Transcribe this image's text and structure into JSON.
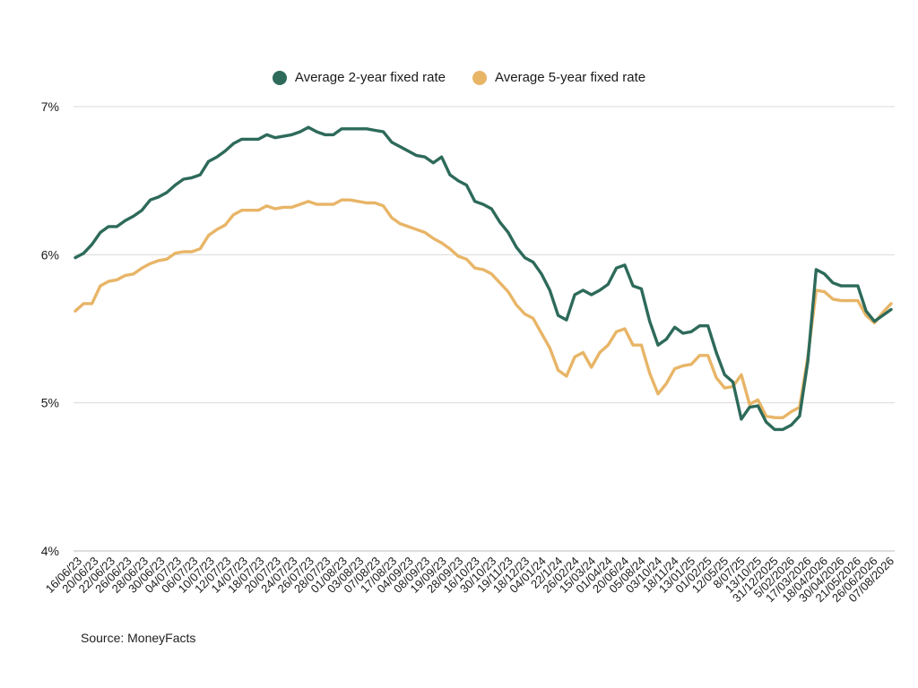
{
  "source_text": "Source: MoneyFacts",
  "colors": {
    "series_2yr": "#2d6a5a",
    "series_5yr": "#e8b567",
    "grid": "#d9d9d9"
  },
  "chart_data": {
    "type": "line",
    "legend_position": "top-center",
    "grid": true,
    "ylim": [
      4,
      7
    ],
    "y_ticks": [
      4,
      5,
      6,
      7
    ],
    "y_tick_labels": [
      "4%",
      "5%",
      "6%",
      "7%"
    ],
    "x_tick_labels": [
      "16/06/23",
      "20/06/23",
      "22/06/23",
      "26/06/23",
      "28/06/23",
      "30/06/23",
      "04/07/23",
      "06/07/23",
      "10/07/23",
      "12/07/23",
      "14/07/23",
      "18/07/23",
      "20/07/23",
      "24/07/23",
      "26/07/23",
      "28/07/23",
      "01/08/23",
      "03/08/23",
      "07/08/23",
      "17/08/23",
      "04/09/23",
      "08/09/23",
      "19/09/23",
      "28/09/23",
      "16/10/23",
      "30/10/23",
      "19/11/23",
      "18/12/23",
      "04/01/24",
      "22/1/24",
      "26/02/24",
      "15/03/24",
      "01/04/24",
      "20/06/24",
      "05/08/24",
      "03/10/24",
      "18/11/24",
      "13/01/25",
      "01/02/25",
      "12/05/25",
      "8/07/25",
      "13/10/25",
      "31/12/2025",
      "5/02/2026",
      "17/03/2026",
      "18/04/2026",
      "30/04/2026",
      "21/05/2026",
      "26/06/2026",
      "07/08/2026"
    ],
    "series": [
      {
        "name": "Average 2-year fixed rate",
        "values": [
          5.98,
          6.01,
          6.07,
          6.15,
          6.19,
          6.19,
          6.23,
          6.26,
          6.3,
          6.37,
          6.39,
          6.42,
          6.47,
          6.51,
          6.52,
          6.54,
          6.63,
          6.66,
          6.7,
          6.75,
          6.78,
          6.78,
          6.78,
          6.81,
          6.79,
          6.8,
          6.81,
          6.83,
          6.86,
          6.83,
          6.81,
          6.81,
          6.85,
          6.85,
          6.85,
          6.85,
          6.84,
          6.83,
          6.76,
          6.73,
          6.7,
          6.67,
          6.66,
          6.62,
          6.66,
          6.54,
          6.5,
          6.47,
          6.36,
          6.34,
          6.31,
          6.22,
          6.15,
          6.05,
          5.98,
          5.95,
          5.87,
          5.76,
          5.59,
          5.56,
          5.73,
          5.76,
          5.73,
          5.76,
          5.8,
          5.91,
          5.93,
          5.79,
          5.77,
          5.55,
          5.39,
          5.43,
          5.51,
          5.47,
          5.48,
          5.52,
          5.52,
          5.34,
          5.19,
          5.14,
          4.89,
          4.97,
          4.98,
          4.87,
          4.82,
          4.82,
          4.85,
          4.91,
          5.28,
          5.9,
          5.87,
          5.81,
          5.79,
          5.79,
          5.79,
          5.62,
          5.55,
          5.59,
          5.63
        ]
      },
      {
        "name": "Average 5-year fixed rate",
        "values": [
          5.62,
          5.67,
          5.67,
          5.79,
          5.82,
          5.83,
          5.86,
          5.87,
          5.91,
          5.94,
          5.96,
          5.97,
          6.01,
          6.02,
          6.02,
          6.04,
          6.13,
          6.17,
          6.2,
          6.27,
          6.3,
          6.3,
          6.3,
          6.33,
          6.31,
          6.32,
          6.32,
          6.34,
          6.36,
          6.34,
          6.34,
          6.34,
          6.37,
          6.37,
          6.36,
          6.35,
          6.35,
          6.33,
          6.25,
          6.21,
          6.19,
          6.17,
          6.15,
          6.11,
          6.08,
          6.04,
          5.99,
          5.97,
          5.91,
          5.9,
          5.87,
          5.81,
          5.75,
          5.66,
          5.6,
          5.57,
          5.47,
          5.37,
          5.22,
          5.18,
          5.31,
          5.34,
          5.24,
          5.34,
          5.39,
          5.48,
          5.5,
          5.39,
          5.39,
          5.2,
          5.06,
          5.13,
          5.23,
          5.25,
          5.26,
          5.32,
          5.32,
          5.17,
          5.1,
          5.11,
          5.19,
          4.99,
          5.02,
          4.91,
          4.9,
          4.9,
          4.94,
          4.97,
          5.31,
          5.76,
          5.75,
          5.7,
          5.69,
          5.69,
          5.69,
          5.59,
          5.54,
          5.61,
          5.67
        ]
      }
    ]
  }
}
